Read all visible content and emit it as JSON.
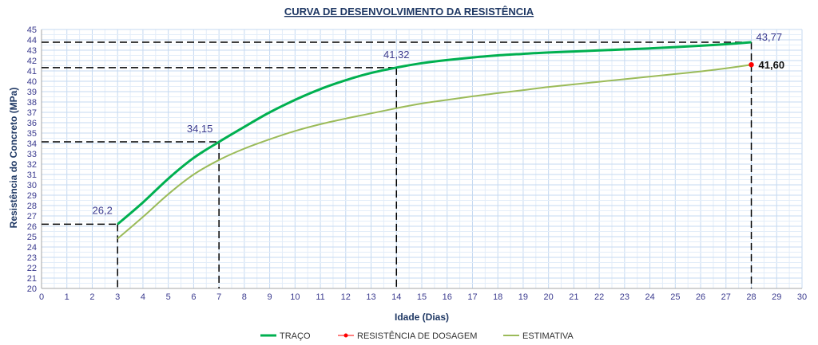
{
  "chart_data": {
    "type": "line",
    "title": "CURVA DE DESENVOLVIMENTO DA RESISTÊNCIA",
    "xlabel": "Idade (Dias)",
    "ylabel": "Resistência do Concreto (MPa)",
    "xlim": [
      0,
      30
    ],
    "ylim": [
      20,
      45
    ],
    "x_ticks": [
      "0",
      "1",
      "2",
      "3",
      "4",
      "5",
      "6",
      "7",
      "8",
      "9",
      "10",
      "11",
      "12",
      "13",
      "14",
      "15",
      "16",
      "17",
      "18",
      "19",
      "20",
      "21",
      "22",
      "23",
      "24",
      "25",
      "26",
      "27",
      "28",
      "29",
      "30"
    ],
    "y_ticks": [
      "20",
      "21",
      "22",
      "23",
      "24",
      "25",
      "26",
      "27",
      "28",
      "29",
      "30",
      "31",
      "32",
      "33",
      "34",
      "35",
      "36",
      "37",
      "38",
      "39",
      "40",
      "41",
      "42",
      "43",
      "44",
      "45"
    ],
    "grid": true,
    "legend_position": "bottom",
    "series": [
      {
        "name": "TRAÇO",
        "color": "#00b050",
        "x": [
          3,
          4,
          5,
          6,
          7,
          8,
          9,
          10,
          11,
          12,
          13,
          14,
          15,
          16,
          17,
          18,
          19,
          20,
          21,
          22,
          23,
          24,
          25,
          26,
          27,
          28
        ],
        "y": [
          26.2,
          28.3,
          30.6,
          32.6,
          34.15,
          35.6,
          37.0,
          38.2,
          39.25,
          40.1,
          40.8,
          41.32,
          41.75,
          42.05,
          42.3,
          42.5,
          42.65,
          42.78,
          42.88,
          42.98,
          43.08,
          43.18,
          43.3,
          43.43,
          43.58,
          43.77
        ]
      },
      {
        "name": "RESISTÊNCIA DE DOSAGEM",
        "color": "#ff0000",
        "x": [
          28
        ],
        "y": [
          41.6
        ]
      },
      {
        "name": "ESTIMATIVA",
        "color": "#9bbb59",
        "x": [
          3,
          4,
          5,
          6,
          7,
          8,
          9,
          10,
          11,
          12,
          13,
          14,
          15,
          16,
          17,
          18,
          19,
          20,
          21,
          22,
          23,
          24,
          25,
          26,
          27,
          28
        ],
        "y": [
          24.8,
          26.9,
          29.1,
          31.0,
          32.4,
          33.5,
          34.4,
          35.2,
          35.85,
          36.4,
          36.9,
          37.4,
          37.85,
          38.2,
          38.55,
          38.85,
          39.15,
          39.45,
          39.7,
          39.95,
          40.2,
          40.45,
          40.7,
          40.95,
          41.25,
          41.6
        ]
      }
    ],
    "annotations": [
      {
        "x": 3,
        "y": 26.2,
        "label": "26,2"
      },
      {
        "x": 7,
        "y": 34.15,
        "label": "34,15"
      },
      {
        "x": 14,
        "y": 41.32,
        "label": "41,32"
      },
      {
        "x": 28,
        "y": 43.77,
        "label": "43,77"
      },
      {
        "x": 28,
        "y": 41.6,
        "label": "41,60"
      }
    ]
  }
}
